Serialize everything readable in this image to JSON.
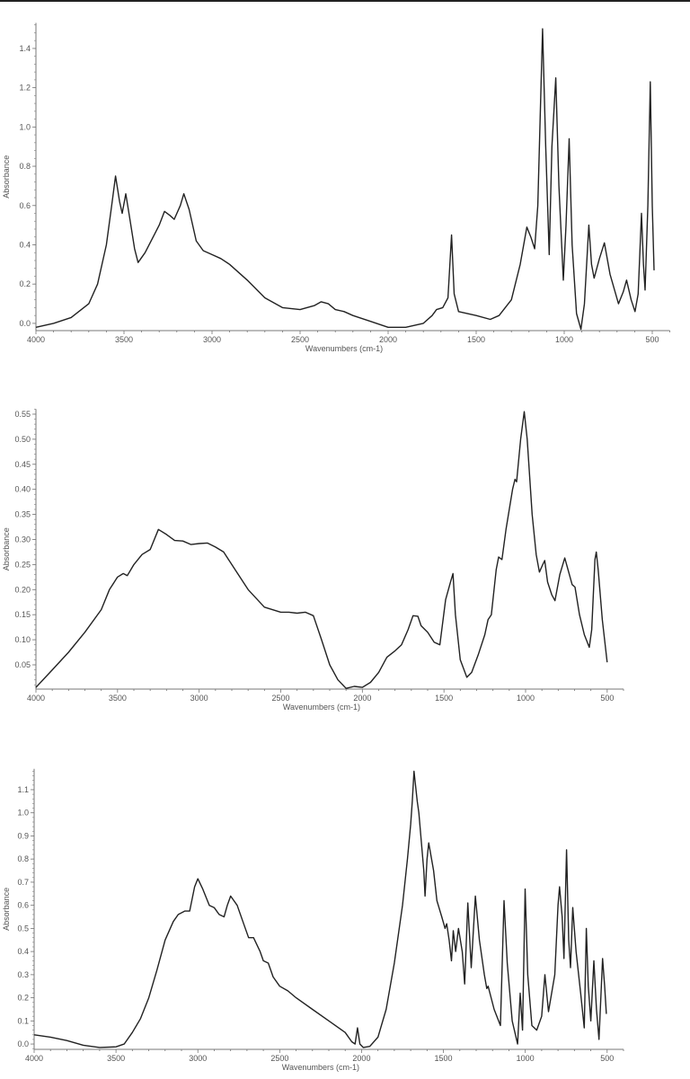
{
  "chart_data": [
    {
      "type": "line",
      "xlabel": "Wavenumbers (cm-1)",
      "ylabel": "Absorbance",
      "xlim": [
        4000,
        400
      ],
      "ylim": [
        -0.037,
        1.53
      ],
      "xticks": [
        4000,
        3500,
        3000,
        2500,
        2000,
        1500,
        1000,
        500
      ],
      "yticks": [
        "0.0",
        "0.2",
        "0.4",
        "0.6",
        "0.8",
        "1.0",
        "1.2",
        "1.4"
      ],
      "grid": false,
      "line_color": "#222222",
      "x": [
        4000,
        3900,
        3800,
        3700,
        3650,
        3600,
        3570,
        3548,
        3525,
        3510,
        3490,
        3470,
        3440,
        3420,
        3380,
        3300,
        3270,
        3240,
        3215,
        3180,
        3160,
        3130,
        3090,
        3050,
        3000,
        2950,
        2900,
        2800,
        2700,
        2600,
        2500,
        2420,
        2380,
        2340,
        2300,
        2250,
        2200,
        2100,
        2000,
        1900,
        1800,
        1750,
        1725,
        1690,
        1660,
        1640,
        1625,
        1600,
        1500,
        1420,
        1370,
        1300,
        1250,
        1212,
        1190,
        1168,
        1150,
        1123,
        1105,
        1085,
        1070,
        1048,
        1030,
        1005,
        990,
        972,
        955,
        930,
        905,
        885,
        860,
        845,
        830,
        800,
        772,
        740,
        692,
        665,
        646,
        620,
        598,
        580,
        561,
        550,
        541,
        525,
        511,
        500,
        490
      ],
      "y": [
        -0.02,
        0.0,
        0.03,
        0.1,
        0.2,
        0.4,
        0.6,
        0.75,
        0.62,
        0.56,
        0.66,
        0.55,
        0.38,
        0.31,
        0.36,
        0.5,
        0.57,
        0.55,
        0.53,
        0.6,
        0.66,
        0.58,
        0.42,
        0.37,
        0.35,
        0.33,
        0.3,
        0.22,
        0.13,
        0.08,
        0.07,
        0.09,
        0.11,
        0.1,
        0.07,
        0.06,
        0.04,
        0.01,
        -0.02,
        -0.02,
        0.0,
        0.04,
        0.07,
        0.08,
        0.13,
        0.45,
        0.15,
        0.06,
        0.04,
        0.02,
        0.04,
        0.12,
        0.3,
        0.49,
        0.44,
        0.38,
        0.6,
        1.5,
        0.9,
        0.35,
        0.9,
        1.25,
        0.7,
        0.22,
        0.5,
        0.94,
        0.4,
        0.05,
        -0.03,
        0.1,
        0.5,
        0.3,
        0.23,
        0.33,
        0.41,
        0.25,
        0.1,
        0.16,
        0.22,
        0.12,
        0.06,
        0.15,
        0.56,
        0.3,
        0.17,
        0.6,
        1.23,
        0.6,
        0.27
      ]
    },
    {
      "type": "line",
      "xlabel": "Wavenumbers (cm-1)",
      "ylabel": "Absorbance",
      "xlim": [
        4000,
        400
      ],
      "ylim": [
        0.0016,
        0.56
      ],
      "xticks": [
        4000,
        3500,
        3000,
        2500,
        2000,
        1500,
        1000,
        500
      ],
      "yticks": [
        "0.05",
        "0.10",
        "0.15",
        "0.20",
        "0.25",
        "0.30",
        "0.35",
        "0.40",
        "0.45",
        "0.50",
        "0.55"
      ],
      "grid": false,
      "line_color": "#222222",
      "x": [
        4000,
        3900,
        3800,
        3700,
        3600,
        3550,
        3500,
        3465,
        3440,
        3400,
        3350,
        3300,
        3250,
        3200,
        3150,
        3100,
        3050,
        3000,
        2950,
        2900,
        2850,
        2800,
        2700,
        2600,
        2500,
        2450,
        2400,
        2350,
        2300,
        2250,
        2200,
        2150,
        2100,
        2050,
        2000,
        1950,
        1900,
        1850,
        1800,
        1760,
        1720,
        1690,
        1660,
        1640,
        1600,
        1560,
        1525,
        1490,
        1460,
        1445,
        1430,
        1400,
        1360,
        1330,
        1290,
        1250,
        1230,
        1210,
        1180,
        1165,
        1145,
        1120,
        1080,
        1065,
        1055,
        1030,
        1008,
        990,
        960,
        935,
        915,
        895,
        883,
        865,
        840,
        820,
        790,
        760,
        740,
        715,
        697,
        670,
        640,
        610,
        595,
        575,
        567,
        555,
        530,
        500
      ],
      "y": [
        0.005,
        0.04,
        0.075,
        0.115,
        0.16,
        0.2,
        0.225,
        0.232,
        0.228,
        0.25,
        0.27,
        0.28,
        0.32,
        0.31,
        0.298,
        0.297,
        0.29,
        0.292,
        0.293,
        0.285,
        0.275,
        0.25,
        0.2,
        0.165,
        0.155,
        0.155,
        0.153,
        0.155,
        0.148,
        0.1,
        0.05,
        0.02,
        0.003,
        0.007,
        0.005,
        0.015,
        0.035,
        0.065,
        0.078,
        0.09,
        0.12,
        0.148,
        0.147,
        0.128,
        0.115,
        0.095,
        0.09,
        0.18,
        0.215,
        0.232,
        0.15,
        0.06,
        0.025,
        0.035,
        0.07,
        0.11,
        0.14,
        0.15,
        0.24,
        0.265,
        0.26,
        0.32,
        0.4,
        0.42,
        0.415,
        0.5,
        0.555,
        0.5,
        0.35,
        0.27,
        0.235,
        0.25,
        0.258,
        0.215,
        0.19,
        0.178,
        0.23,
        0.263,
        0.24,
        0.21,
        0.205,
        0.15,
        0.11,
        0.085,
        0.12,
        0.26,
        0.275,
        0.24,
        0.14,
        0.055
      ]
    },
    {
      "type": "line",
      "xlabel": "Wavenumbers (cm-1)",
      "ylabel": "Absorbance",
      "xlim": [
        4000,
        400
      ],
      "ylim": [
        -0.023,
        1.19
      ],
      "xticks": [
        4000,
        3500,
        3000,
        2500,
        2000,
        1500,
        1000,
        500
      ],
      "yticks": [
        "0.0",
        "0.1",
        "0.2",
        "0.3",
        "0.4",
        "0.5",
        "0.6",
        "0.7",
        "0.8",
        "0.9",
        "1.0",
        "1.1"
      ],
      "grid": false,
      "line_color": "#222222",
      "x": [
        4000,
        3900,
        3800,
        3700,
        3600,
        3500,
        3450,
        3400,
        3350,
        3300,
        3250,
        3200,
        3150,
        3120,
        3080,
        3050,
        3020,
        3000,
        2970,
        2930,
        2900,
        2870,
        2840,
        2820,
        2800,
        2760,
        2720,
        2690,
        2660,
        2620,
        2600,
        2570,
        2540,
        2500,
        2450,
        2400,
        2300,
        2200,
        2100,
        2060,
        2040,
        2025,
        2010,
        1990,
        1950,
        1900,
        1850,
        1800,
        1750,
        1720,
        1700,
        1690,
        1680,
        1660,
        1650,
        1620,
        1612,
        1600,
        1590,
        1560,
        1540,
        1510,
        1490,
        1480,
        1465,
        1451,
        1440,
        1425,
        1408,
        1385,
        1370,
        1351,
        1330,
        1305,
        1280,
        1250,
        1235,
        1227,
        1190,
        1152,
        1130,
        1110,
        1080,
        1047,
        1031,
        1017,
        1001,
        985,
        960,
        930,
        900,
        880,
        858,
        820,
        800,
        791,
        775,
        764,
        748,
        735,
        724,
        710,
        690,
        662,
        640,
        627,
        615,
        600,
        581,
        565,
        550,
        528,
        515,
        505
      ],
      "y": [
        0.04,
        0.03,
        0.015,
        -0.005,
        -0.015,
        -0.012,
        0.0,
        0.05,
        0.11,
        0.2,
        0.32,
        0.45,
        0.53,
        0.56,
        0.575,
        0.575,
        0.68,
        0.715,
        0.67,
        0.6,
        0.59,
        0.56,
        0.55,
        0.6,
        0.64,
        0.6,
        0.52,
        0.46,
        0.46,
        0.4,
        0.36,
        0.35,
        0.29,
        0.25,
        0.23,
        0.2,
        0.15,
        0.1,
        0.05,
        0.01,
        0.0,
        0.07,
        0.0,
        -0.015,
        -0.01,
        0.03,
        0.15,
        0.35,
        0.6,
        0.8,
        0.95,
        1.05,
        1.18,
        1.05,
        1.0,
        0.75,
        0.64,
        0.8,
        0.87,
        0.75,
        0.62,
        0.55,
        0.5,
        0.52,
        0.45,
        0.36,
        0.49,
        0.4,
        0.5,
        0.4,
        0.26,
        0.61,
        0.33,
        0.64,
        0.45,
        0.3,
        0.24,
        0.25,
        0.15,
        0.08,
        0.62,
        0.35,
        0.1,
        0.0,
        0.22,
        0.06,
        0.67,
        0.3,
        0.08,
        0.06,
        0.12,
        0.3,
        0.14,
        0.3,
        0.6,
        0.68,
        0.55,
        0.37,
        0.84,
        0.45,
        0.33,
        0.59,
        0.4,
        0.22,
        0.07,
        0.5,
        0.25,
        0.1,
        0.36,
        0.15,
        0.02,
        0.37,
        0.25,
        0.13
      ]
    }
  ]
}
